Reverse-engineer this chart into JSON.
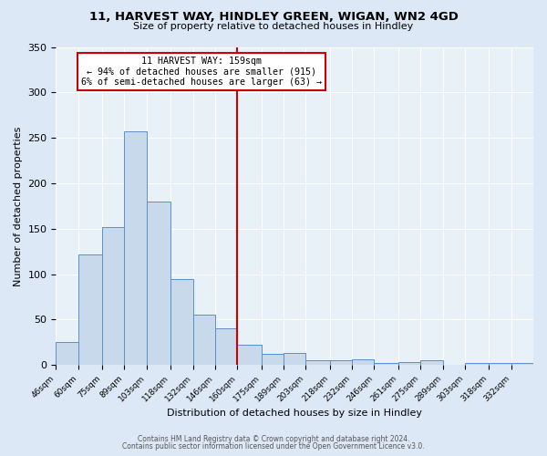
{
  "title1": "11, HARVEST WAY, HINDLEY GREEN, WIGAN, WN2 4GD",
  "title2": "Size of property relative to detached houses in Hindley",
  "xlabel": "Distribution of detached houses by size in Hindley",
  "ylabel": "Number of detached properties",
  "bins": [
    46,
    60,
    75,
    89,
    103,
    118,
    132,
    146,
    160,
    175,
    189,
    203,
    218,
    232,
    246,
    261,
    275,
    289,
    303,
    318,
    332,
    346
  ],
  "counts": [
    25,
    122,
    152,
    257,
    180,
    95,
    55,
    40,
    22,
    12,
    13,
    5,
    5,
    6,
    2,
    3,
    5,
    0,
    2,
    2,
    2
  ],
  "bar_facecolor": "#c9d9ec",
  "bar_edgecolor": "#5b8fc9",
  "vline_x": 160,
  "vline_color": "#cc0000",
  "annotation_title": "11 HARVEST WAY: 159sqm",
  "annotation_line1": "← 94% of detached houses are smaller (915)",
  "annotation_line2": "6% of semi-detached houses are larger (63) →",
  "annotation_box_edgecolor": "#cc0000",
  "annotation_box_facecolor": "#ffffff",
  "ylim": [
    0,
    350
  ],
  "yticks": [
    0,
    50,
    100,
    150,
    200,
    250,
    300,
    350
  ],
  "bg_color": "#dce8f5",
  "plot_bg_color": "#e8f0f8",
  "footer1": "Contains HM Land Registry data © Crown copyright and database right 2024.",
  "footer2": "Contains public sector information licensed under the Open Government Licence v3.0."
}
